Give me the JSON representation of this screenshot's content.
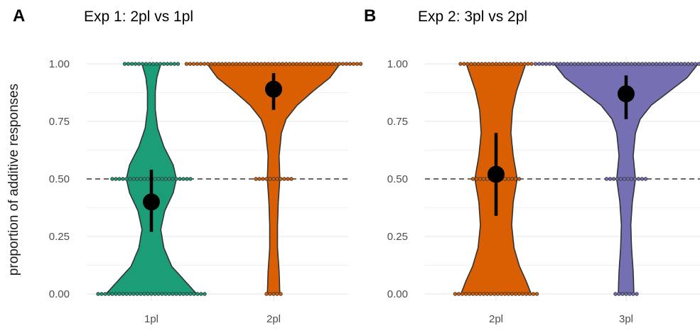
{
  "ylabel": "proportion of additive responses",
  "colors": {
    "1pl": "#1b9e77",
    "2pl": "#d95f02",
    "3pl": "#7570b3",
    "grid": "#ebebeb",
    "dash": "#555555"
  },
  "chart_data": [
    {
      "type": "violin",
      "panel_label": "A",
      "title": "Exp 1: 2pl vs 1pl",
      "ylabel": "proportion of additive responses",
      "ylim": [
        0,
        1
      ],
      "yticks": [
        "0.00",
        "0.25",
        "0.50",
        "0.75",
        "1.00"
      ],
      "reference_line": 0.5,
      "categories": [
        "1pl",
        "2pl"
      ],
      "groups": [
        {
          "name": "1pl",
          "color": "#1b9e77",
          "mean": 0.4,
          "ci": [
            0.27,
            0.54
          ],
          "dot_counts": {
            "0": 31,
            "0.5": 23,
            "1": 16
          },
          "density": [
            [
              0,
              0.58
            ],
            [
              0.06,
              0.42
            ],
            [
              0.12,
              0.26
            ],
            [
              0.2,
              0.16
            ],
            [
              0.28,
              0.12
            ],
            [
              0.36,
              0.17
            ],
            [
              0.44,
              0.28
            ],
            [
              0.5,
              0.32
            ],
            [
              0.56,
              0.28
            ],
            [
              0.64,
              0.16
            ],
            [
              0.72,
              0.08
            ],
            [
              0.8,
              0.05
            ],
            [
              0.88,
              0.05
            ],
            [
              0.94,
              0.07
            ],
            [
              1,
              0.12
            ]
          ]
        },
        {
          "name": "2pl",
          "color": "#d95f02",
          "mean": 0.89,
          "ci": [
            0.8,
            0.96
          ],
          "dot_counts": {
            "0": 5,
            "0.5": 11,
            "1": 50
          },
          "density": [
            [
              0,
              0.08
            ],
            [
              0.1,
              0.07
            ],
            [
              0.2,
              0.05
            ],
            [
              0.3,
              0.05
            ],
            [
              0.4,
              0.06
            ],
            [
              0.5,
              0.08
            ],
            [
              0.6,
              0.07
            ],
            [
              0.7,
              0.1
            ],
            [
              0.76,
              0.16
            ],
            [
              0.82,
              0.3
            ],
            [
              0.88,
              0.5
            ],
            [
              0.94,
              0.72
            ],
            [
              1,
              0.85
            ]
          ]
        }
      ]
    },
    {
      "type": "violin",
      "panel_label": "B",
      "title": "Exp 2: 3pl vs 2pl",
      "ylim": [
        0,
        1
      ],
      "yticks": [
        "0.00",
        "0.25",
        "0.50",
        "0.75",
        "1.00"
      ],
      "reference_line": 0.5,
      "categories": [
        "2pl",
        "3pl"
      ],
      "groups": [
        {
          "name": "2pl",
          "color": "#d95f02",
          "mean": 0.52,
          "ci": [
            0.34,
            0.7
          ],
          "dot_counts": {
            "0": 24,
            "0.5": 14,
            "1": 21
          },
          "density": [
            [
              0,
              0.45
            ],
            [
              0.06,
              0.38
            ],
            [
              0.12,
              0.3
            ],
            [
              0.2,
              0.23
            ],
            [
              0.3,
              0.2
            ],
            [
              0.4,
              0.22
            ],
            [
              0.5,
              0.27
            ],
            [
              0.6,
              0.22
            ],
            [
              0.7,
              0.19
            ],
            [
              0.8,
              0.21
            ],
            [
              0.88,
              0.26
            ],
            [
              0.94,
              0.32
            ],
            [
              1,
              0.38
            ]
          ]
        },
        {
          "name": "3pl",
          "color": "#7570b3",
          "mean": 0.87,
          "ci": [
            0.76,
            0.95
          ],
          "dot_counts": {
            "0": 7,
            "0.5": 12,
            "1": 52
          },
          "density": [
            [
              0,
              0.1
            ],
            [
              0.1,
              0.09
            ],
            [
              0.2,
              0.07
            ],
            [
              0.3,
              0.06
            ],
            [
              0.4,
              0.08
            ],
            [
              0.5,
              0.12
            ],
            [
              0.6,
              0.09
            ],
            [
              0.7,
              0.12
            ],
            [
              0.76,
              0.18
            ],
            [
              0.82,
              0.32
            ],
            [
              0.88,
              0.55
            ],
            [
              0.94,
              0.78
            ],
            [
              1,
              0.92
            ]
          ]
        }
      ]
    }
  ]
}
